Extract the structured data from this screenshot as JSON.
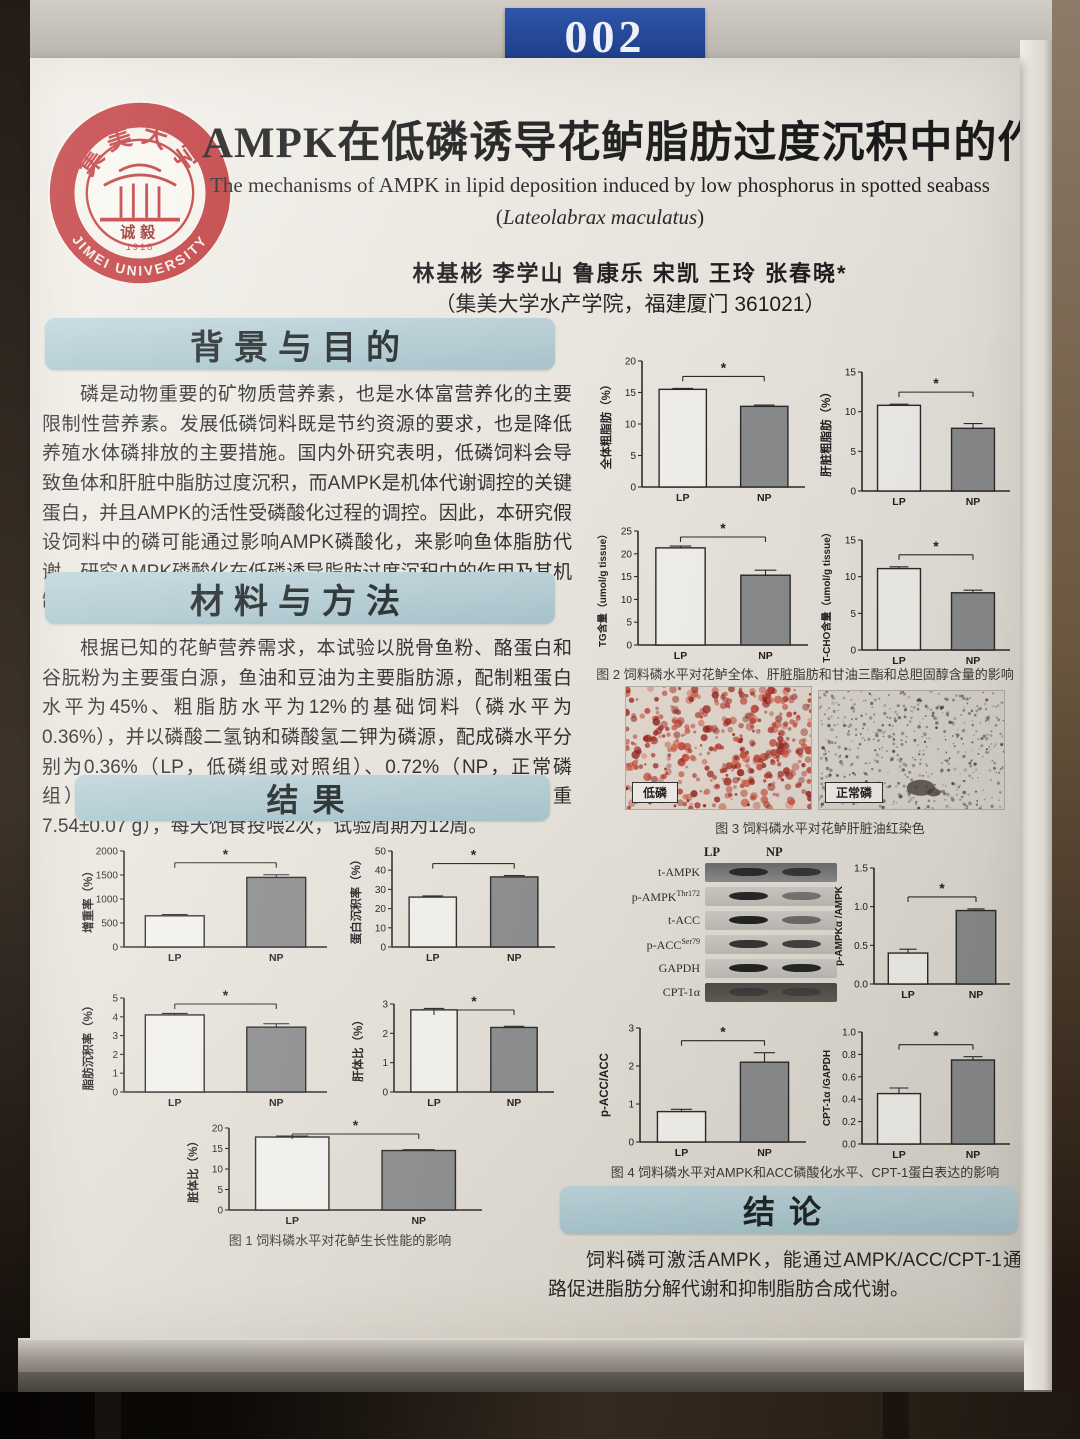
{
  "scene": {
    "plate_number": "002"
  },
  "header": {
    "title_cn": "AMPK在低磷诱导花鲈脂肪过度沉积中的作用机制研究",
    "title_en_pre": "The mechanisms of AMPK in lipid deposition induced by low phosphorus in spotted seabass (",
    "title_en_species": "Lateolabrax maculatus",
    "title_en_close": ")",
    "authors": "林基彬  李学山  鲁康乐  宋凯  王玲  张春晓*",
    "affiliation": "（集美大学水产学院，福建厦门 361021）",
    "logo": {
      "univ_cn": "集美大学",
      "univ_en": "JIMEI UNIVERSITY",
      "motto": "诚毅",
      "year": "1918"
    }
  },
  "sections": {
    "background": {
      "heading": "背景与目的",
      "body": "磷是动物重要的矿物质营养素，也是水体富营养化的主要限制性营养素。发展低磷饲料既是节约资源的要求，也是降低养殖水体磷排放的主要措施。国内外研究表明，低磷饲料会导致鱼体和肝脏中脂肪过度沉积，而AMPK是机体代谢调控的关键蛋白，并且AMPK的活性受磷酸化过程的调控。因此，本研究假设饲料中的磷可能通过影响AMPK磷酸化，来影响鱼体脂肪代谢。研究AMPK磷酸化在低磷诱导脂肪过度沉积中的作用及其机制，以揭示低磷饲料导致鱼体脂肪过度沉积机制。"
    },
    "methods": {
      "heading": "材料与方法",
      "body": "根据已知的花鲈营养需求，本试验以脱骨鱼粉、酪蛋白和谷朊粉为主要蛋白源，鱼油和豆油为主要脂肪源，配制粗蛋白水平为45%、粗脂肪水平为12%的基础饲料（磷水平为0.36%），并以磷酸二氢钠和磷酸氢二钾为磷源，配成磷水平分别为0.36%（LP，低磷组或对照组）、0.72%（NP，正常磷组）。每个处理组设3个平行，每个平行30尾鱼（初均重7.54±0.07 g），每天饱食投喂2次，试验周期为12周。"
    },
    "results": {
      "heading": "结果"
    },
    "conclusion": {
      "heading": "结论",
      "body": "饲料磷可激活AMPK，能通过AMPK/ACC/CPT-1通路促进脂肪分解代谢和抑制脂肪合成代谢。"
    }
  },
  "figures": {
    "fig1_caption": "图 1 饲料磷水平对花鲈生长性能的影响",
    "fig2_caption": "图 2 饲料磷水平对花鲈全体、肝脏脂肪和甘油三酯和总胆固醇含量的影响",
    "fig3_caption": "图 3 饲料磷水平对花鲈肝脏油红染色",
    "fig4_caption": "图 4 饲料磷水平对AMPK和ACC磷酸化水平、CPT-1蛋白表达的影响",
    "histology": {
      "left_label": "低磷",
      "right_label": "正常磷",
      "left_stain": "#b63a2e",
      "right_stain": "#6f6862"
    }
  },
  "wblot": {
    "col_labels": [
      "LP",
      "NP"
    ],
    "rows": [
      {
        "label": "t-AMPK",
        "sup": "",
        "strip": "gray-dark",
        "lp": 0.78,
        "np": 0.68
      },
      {
        "label": "p-AMPK",
        "sup": "Thr172",
        "strip": "light",
        "lp": 0.9,
        "np": 0.45
      },
      {
        "label": "t-ACC",
        "sup": "",
        "strip": "light",
        "lp": 0.92,
        "np": 0.5
      },
      {
        "label": "p-ACC",
        "sup": "Ser79",
        "strip": "light",
        "lp": 0.82,
        "np": 0.74
      },
      {
        "label": "GAPDH",
        "sup": "",
        "strip": "light",
        "lp": 0.92,
        "np": 0.9
      },
      {
        "label": "CPT-1α",
        "sup": "",
        "strip": "dark",
        "lp": 0.35,
        "np": 0.3
      }
    ]
  },
  "chart_data": [
    {
      "type": "bar",
      "id": "weight-gain",
      "ylabel": "增重率（%）",
      "ylim": [
        0,
        2000
      ],
      "yticks": [
        "0",
        "500",
        "1000",
        "1500",
        "2000"
      ],
      "categories": [
        "LP",
        "NP"
      ],
      "values": [
        650,
        1450
      ],
      "errors": [
        25,
        55
      ],
      "sig": "*"
    },
    {
      "type": "bar",
      "id": "protein-retention",
      "ylabel": "蛋白沉积率（%）",
      "ylim": [
        0,
        50
      ],
      "yticks": [
        "0",
        "10",
        "20",
        "30",
        "40",
        "50"
      ],
      "categories": [
        "LP",
        "NP"
      ],
      "values": [
        26,
        36.5
      ],
      "errors": [
        0.6,
        0.7
      ],
      "sig": "*"
    },
    {
      "type": "bar",
      "id": "fat-retention",
      "ylabel": "脂肪沉积率（%）",
      "ylim": [
        0,
        5
      ],
      "yticks": [
        "0",
        "1",
        "2",
        "3",
        "4",
        "5"
      ],
      "categories": [
        "LP",
        "NP"
      ],
      "values": [
        4.1,
        3.45
      ],
      "errors": [
        0.08,
        0.18
      ],
      "sig": "*"
    },
    {
      "type": "bar",
      "id": "hsi",
      "ylabel": "肝体比（%）",
      "ylim": [
        0,
        3
      ],
      "yticks": [
        "0",
        "1",
        "2",
        "3"
      ],
      "categories": [
        "LP",
        "NP"
      ],
      "values": [
        2.8,
        2.2
      ],
      "errors": [
        0.05,
        0.04
      ],
      "sig": "*"
    },
    {
      "type": "bar",
      "id": "vsi",
      "ylabel": "脏体比（%）",
      "ylim": [
        0,
        20
      ],
      "yticks": [
        "0",
        "5",
        "10",
        "15",
        "20"
      ],
      "categories": [
        "LP",
        "NP"
      ],
      "values": [
        17.8,
        14.5
      ],
      "errors": [
        0.25,
        0.2
      ],
      "sig": "*"
    },
    {
      "type": "bar",
      "id": "whole-body-fat",
      "ylabel": "全体粗脂肪（%）",
      "ylim": [
        0,
        20
      ],
      "yticks": [
        "0",
        "5",
        "10",
        "15",
        "20"
      ],
      "categories": [
        "LP",
        "NP"
      ],
      "values": [
        15.5,
        12.8
      ],
      "errors": [
        0.15,
        0.2
      ],
      "sig": "*"
    },
    {
      "type": "bar",
      "id": "liver-fat",
      "ylabel": "肝脏粗脂肪（%）",
      "ylim": [
        0,
        15
      ],
      "yticks": [
        "0",
        "5",
        "10",
        "15"
      ],
      "categories": [
        "LP",
        "NP"
      ],
      "values": [
        10.8,
        7.9
      ],
      "errors": [
        0.15,
        0.6
      ],
      "sig": "*"
    },
    {
      "type": "bar",
      "id": "tg-content",
      "ylabel": "TG含量（umol/g tissue）",
      "ylim": [
        0,
        25
      ],
      "yticks": [
        "0",
        "5",
        "10",
        "15",
        "20",
        "25"
      ],
      "categories": [
        "LP",
        "NP"
      ],
      "values": [
        21.3,
        15.3
      ],
      "errors": [
        0.4,
        1.1
      ],
      "sig": "*"
    },
    {
      "type": "bar",
      "id": "tcho-content",
      "ylabel": "T-CHO含量（umol/g tissue）",
      "ylim": [
        0,
        15
      ],
      "yticks": [
        "0",
        "5",
        "10",
        "15"
      ],
      "categories": [
        "LP",
        "NP"
      ],
      "values": [
        11.1,
        7.8
      ],
      "errors": [
        0.25,
        0.35
      ],
      "sig": "*"
    },
    {
      "type": "bar",
      "id": "p-ampk-ratio",
      "ylabel": "p-AMPKα /AMPK",
      "ylim": [
        0,
        1.5
      ],
      "yticks": [
        "0.0",
        "0.5",
        "1.0",
        "1.5"
      ],
      "categories": [
        "LP",
        "NP"
      ],
      "values": [
        0.4,
        0.95
      ],
      "errors": [
        0.05,
        0.02
      ],
      "sig": "*"
    },
    {
      "type": "bar",
      "id": "p-acc-ratio",
      "ylabel": "p-ACC/ACC",
      "ylim": [
        0,
        3
      ],
      "yticks": [
        "0",
        "1",
        "2",
        "3"
      ],
      "categories": [
        "LP",
        "NP"
      ],
      "values": [
        0.8,
        2.1
      ],
      "errors": [
        0.06,
        0.25
      ],
      "sig": "*"
    },
    {
      "type": "bar",
      "id": "cpt1-ratio",
      "ylabel": "CPT-1α /GAPDH",
      "ylim": [
        0,
        1.0
      ],
      "yticks": [
        "0.0",
        "0.2",
        "0.4",
        "0.6",
        "0.8",
        "1.0"
      ],
      "categories": [
        "LP",
        "NP"
      ],
      "values": [
        0.45,
        0.75
      ],
      "errors": [
        0.05,
        0.03
      ],
      "sig": "*"
    }
  ],
  "colors": {
    "plate_bg": "#24489b",
    "section_bar": "#b7d0d8",
    "logo_red": "#c23a3c",
    "bar_lp_fill": "#f7f5f0",
    "bar_np_fill": "#8e8f90",
    "poster_bg": "#f1ede6"
  }
}
